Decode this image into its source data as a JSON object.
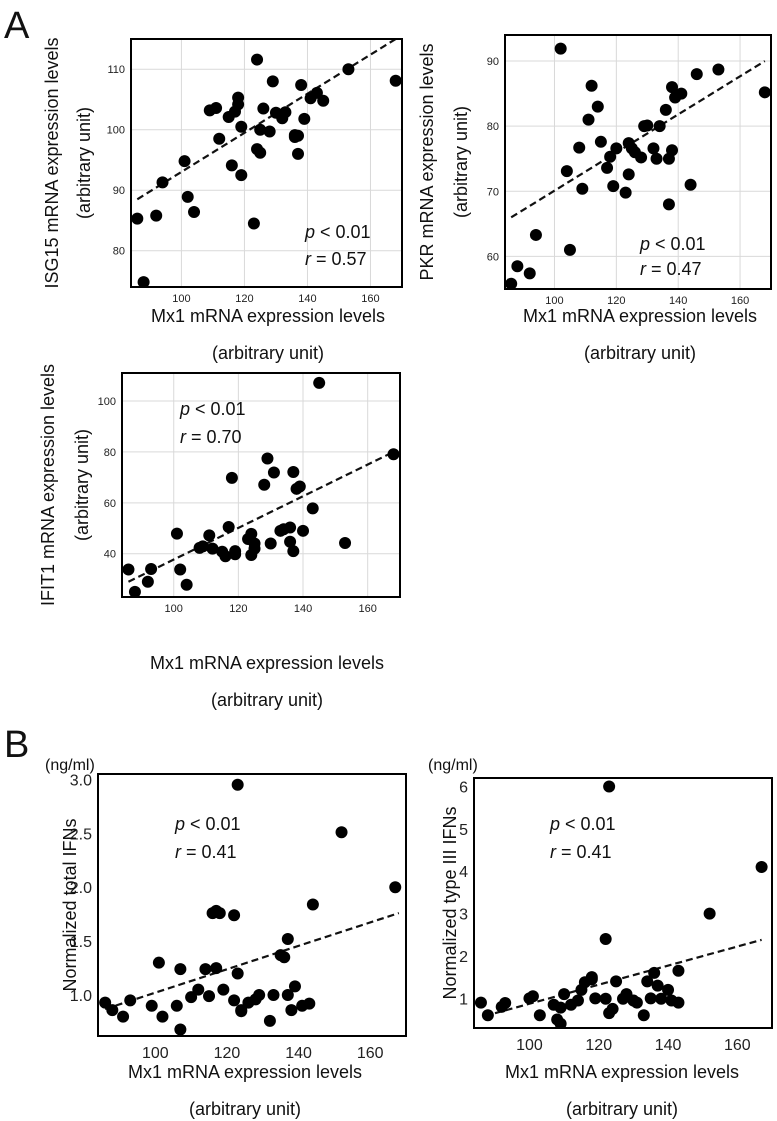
{
  "panel_labels": {
    "a": "A",
    "b": "B"
  },
  "chart_data": [
    {
      "id": "isg15",
      "type": "scatter",
      "ylabel": "ISG15 mRNA expression levels",
      "ylabel2": "(arbitrary unit)",
      "xlabel": "Mx1 mRNA expression levels",
      "xlabel2": "(arbitrary unit)",
      "xlim": [
        84,
        170
      ],
      "ylim": [
        74,
        115
      ],
      "xticks": [
        100,
        120,
        140,
        160
      ],
      "yticks": [
        80,
        90,
        100,
        110
      ],
      "p_text": "p",
      "p_rest": " < 0.01",
      "r_text": "r",
      "r_rest": " = 0.57",
      "trend": [
        [
          86,
          88.5
        ],
        [
          168,
          115
        ]
      ],
      "points": [
        [
          86,
          85.3
        ],
        [
          88,
          74.8
        ],
        [
          92,
          85.8
        ],
        [
          94,
          91.3
        ],
        [
          101,
          94.8
        ],
        [
          102,
          88.9
        ],
        [
          104,
          86.4
        ],
        [
          109,
          103.2
        ],
        [
          111,
          103.6
        ],
        [
          112,
          98.5
        ],
        [
          115,
          102.1
        ],
        [
          116,
          94.1
        ],
        [
          117,
          103.0
        ],
        [
          118,
          104.2
        ],
        [
          118,
          105.3
        ],
        [
          119,
          92.5
        ],
        [
          119,
          100.5
        ],
        [
          123,
          84.5
        ],
        [
          124,
          111.6
        ],
        [
          124,
          96.8
        ],
        [
          125,
          96.2
        ],
        [
          125,
          100.0
        ],
        [
          126,
          103.5
        ],
        [
          128,
          99.7
        ],
        [
          129,
          108.0
        ],
        [
          130,
          102.8
        ],
        [
          132,
          101.9
        ],
        [
          133,
          102.9
        ],
        [
          136,
          98.8
        ],
        [
          136,
          99.1
        ],
        [
          137,
          96.0
        ],
        [
          137,
          99.0
        ],
        [
          138,
          107.4
        ],
        [
          139,
          101.8
        ],
        [
          141,
          105.2
        ],
        [
          143,
          106.1
        ],
        [
          145,
          104.8
        ],
        [
          153,
          110.0
        ],
        [
          168,
          108.1
        ]
      ]
    },
    {
      "id": "pkr",
      "type": "scatter",
      "ylabel": "PKR mRNA expression levels",
      "ylabel2": "(arbitrary unit)",
      "xlabel": "Mx1 mRNA expression levels",
      "xlabel2": "(arbitrary unit)",
      "xlim": [
        84,
        170
      ],
      "ylim": [
        55,
        94
      ],
      "xticks": [
        100,
        120,
        140,
        160
      ],
      "yticks": [
        60,
        70,
        80,
        90
      ],
      "p_text": "p",
      "p_rest": " < 0.01",
      "r_text": "r",
      "r_rest": " = 0.47",
      "trend": [
        [
          86,
          66
        ],
        [
          168,
          90
        ]
      ],
      "points": [
        [
          86,
          55.8
        ],
        [
          88,
          58.5
        ],
        [
          92,
          57.4
        ],
        [
          94,
          63.3
        ],
        [
          102,
          91.9
        ],
        [
          104,
          73.1
        ],
        [
          105,
          61.0
        ],
        [
          108,
          76.7
        ],
        [
          109,
          70.4
        ],
        [
          111,
          81.0
        ],
        [
          112,
          86.2
        ],
        [
          114,
          83.0
        ],
        [
          115,
          77.6
        ],
        [
          117,
          73.6
        ],
        [
          118,
          75.3
        ],
        [
          119,
          70.8
        ],
        [
          120,
          76.6
        ],
        [
          123,
          69.8
        ],
        [
          124,
          72.6
        ],
        [
          124,
          77.4
        ],
        [
          125,
          76.6
        ],
        [
          126,
          76.0
        ],
        [
          128,
          75.2
        ],
        [
          129,
          80.0
        ],
        [
          130,
          80.1
        ],
        [
          132,
          76.6
        ],
        [
          133,
          75.0
        ],
        [
          134,
          80.0
        ],
        [
          136,
          82.5
        ],
        [
          137,
          75.0
        ],
        [
          137,
          68.0
        ],
        [
          138,
          76.3
        ],
        [
          138,
          86.0
        ],
        [
          139,
          84.4
        ],
        [
          141,
          85.0
        ],
        [
          144,
          71.0
        ],
        [
          146,
          88.0
        ],
        [
          153,
          88.7
        ],
        [
          168,
          85.2
        ]
      ]
    },
    {
      "id": "ifit1",
      "type": "scatter",
      "ylabel": "IFIT1 mRNA expression levels",
      "ylabel2": "(arbitrary unit)",
      "xlabel": "Mx1 mRNA expression levels",
      "xlabel2": "(arbitrary unit)",
      "xlim": [
        84,
        170
      ],
      "ylim": [
        23,
        111
      ],
      "xticks": [
        100,
        120,
        140,
        160
      ],
      "yticks": [
        40,
        60,
        80,
        100
      ],
      "p_text": "p",
      "p_rest": " < 0.01",
      "r_text": "r",
      "r_rest": " = 0.70",
      "trend": [
        [
          86,
          29
        ],
        [
          168,
          80
        ]
      ],
      "points": [
        [
          86,
          33.8
        ],
        [
          88,
          25.0
        ],
        [
          92,
          29.0
        ],
        [
          93,
          34.0
        ],
        [
          101,
          47.9
        ],
        [
          102,
          33.8
        ],
        [
          104,
          27.8
        ],
        [
          108,
          42.3
        ],
        [
          109,
          42.9
        ],
        [
          111,
          47.2
        ],
        [
          112,
          42.0
        ],
        [
          115,
          40.8
        ],
        [
          116,
          39.0
        ],
        [
          117,
          50.5
        ],
        [
          118,
          69.8
        ],
        [
          119,
          41.0
        ],
        [
          119,
          39.8
        ],
        [
          123,
          45.8
        ],
        [
          124,
          47.8
        ],
        [
          124,
          39.5
        ],
        [
          125,
          42.0
        ],
        [
          125,
          44.0
        ],
        [
          128,
          67.1
        ],
        [
          129,
          77.4
        ],
        [
          130,
          44.0
        ],
        [
          131,
          71.9
        ],
        [
          133,
          49.0
        ],
        [
          134,
          49.6
        ],
        [
          136,
          44.7
        ],
        [
          136,
          50.3
        ],
        [
          137,
          41.0
        ],
        [
          137,
          72.1
        ],
        [
          138,
          65.5
        ],
        [
          139,
          66.4
        ],
        [
          140,
          49.0
        ],
        [
          143,
          57.8
        ],
        [
          145,
          107.1
        ],
        [
          153,
          44.2
        ],
        [
          168,
          79.1
        ]
      ]
    },
    {
      "id": "total_ifn",
      "type": "scatter",
      "unit": "(ng/ml)",
      "ylabel": "Normalized total IFNs",
      "xlabel": "Mx1 mRNA expression levels",
      "xlabel2": "(arbitrary unit)",
      "xlim": [
        84,
        170
      ],
      "ylim": [
        0.62,
        3.05
      ],
      "xticks": [
        100,
        120,
        140,
        160
      ],
      "yticks": [
        "1.0",
        "1.5",
        "2.0",
        "2.5",
        "3.0"
      ],
      "p_text": "p",
      "p_rest": " < 0.01",
      "r_text": "r",
      "r_rest": " = 0.41",
      "trend": [
        [
          86,
          0.87
        ],
        [
          168,
          1.76
        ]
      ],
      "points": [
        [
          86,
          0.93
        ],
        [
          88,
          0.86
        ],
        [
          91,
          0.8
        ],
        [
          93,
          0.95
        ],
        [
          99,
          0.9
        ],
        [
          101,
          1.3
        ],
        [
          102,
          0.8
        ],
        [
          106,
          0.9
        ],
        [
          107,
          1.24
        ],
        [
          107,
          0.68
        ],
        [
          110,
          0.98
        ],
        [
          112,
          1.05
        ],
        [
          114,
          1.24
        ],
        [
          115,
          0.99
        ],
        [
          116,
          1.76
        ],
        [
          117,
          1.78
        ],
        [
          117,
          1.25
        ],
        [
          118,
          1.76
        ],
        [
          119,
          1.05
        ],
        [
          122,
          0.95
        ],
        [
          122,
          1.74
        ],
        [
          123,
          1.2
        ],
        [
          123,
          2.95
        ],
        [
          124,
          0.86
        ],
        [
          124,
          0.85
        ],
        [
          126,
          0.93
        ],
        [
          128,
          0.96
        ],
        [
          129,
          1.0
        ],
        [
          132,
          0.76
        ],
        [
          133,
          1.0
        ],
        [
          135,
          1.37
        ],
        [
          136,
          1.35
        ],
        [
          137,
          1.52
        ],
        [
          137,
          1.0
        ],
        [
          138,
          0.86
        ],
        [
          139,
          1.08
        ],
        [
          141,
          0.9
        ],
        [
          143,
          0.92
        ],
        [
          144,
          1.84
        ],
        [
          152,
          2.51
        ],
        [
          167,
          2.0
        ]
      ]
    },
    {
      "id": "type3_ifn",
      "type": "scatter",
      "unit": "(ng/ml)",
      "ylabel": "Normalized type III IFNs",
      "xlabel": "Mx1 mRNA expression levels",
      "xlabel2": "(arbitrary unit)",
      "xlim": [
        84,
        170
      ],
      "ylim": [
        0.3,
        6.2
      ],
      "xticks": [
        100,
        120,
        140,
        160
      ],
      "yticks": [
        1,
        2,
        3,
        4,
        5,
        6
      ],
      "p_text": "p",
      "p_rest": " < 0.01",
      "r_text": "r",
      "r_rest": " = 0.41",
      "trend": [
        [
          87,
          0.58
        ],
        [
          167,
          2.38
        ]
      ],
      "points": [
        [
          86,
          0.9
        ],
        [
          88,
          0.6
        ],
        [
          92,
          0.8
        ],
        [
          93,
          0.89
        ],
        [
          100,
          1.0
        ],
        [
          101,
          1.05
        ],
        [
          103,
          0.6
        ],
        [
          107,
          0.85
        ],
        [
          108,
          0.5
        ],
        [
          109,
          0.4
        ],
        [
          109,
          0.78
        ],
        [
          110,
          1.1
        ],
        [
          112,
          0.85
        ],
        [
          114,
          0.95
        ],
        [
          115,
          1.2
        ],
        [
          116,
          1.38
        ],
        [
          118,
          1.5
        ],
        [
          118,
          1.45
        ],
        [
          119,
          1.0
        ],
        [
          122,
          0.99
        ],
        [
          122,
          2.4
        ],
        [
          123,
          6.0
        ],
        [
          123,
          0.65
        ],
        [
          124,
          0.75
        ],
        [
          125,
          1.4
        ],
        [
          127,
          0.99
        ],
        [
          128,
          1.1
        ],
        [
          130,
          0.95
        ],
        [
          131,
          0.9
        ],
        [
          133,
          0.6
        ],
        [
          134,
          1.4
        ],
        [
          135,
          1.0
        ],
        [
          136,
          1.6
        ],
        [
          137,
          1.3
        ],
        [
          138,
          0.99
        ],
        [
          140,
          1.2
        ],
        [
          141,
          0.95
        ],
        [
          143,
          1.65
        ],
        [
          143,
          0.9
        ],
        [
          152,
          3.0
        ],
        [
          167,
          4.1
        ]
      ]
    }
  ]
}
